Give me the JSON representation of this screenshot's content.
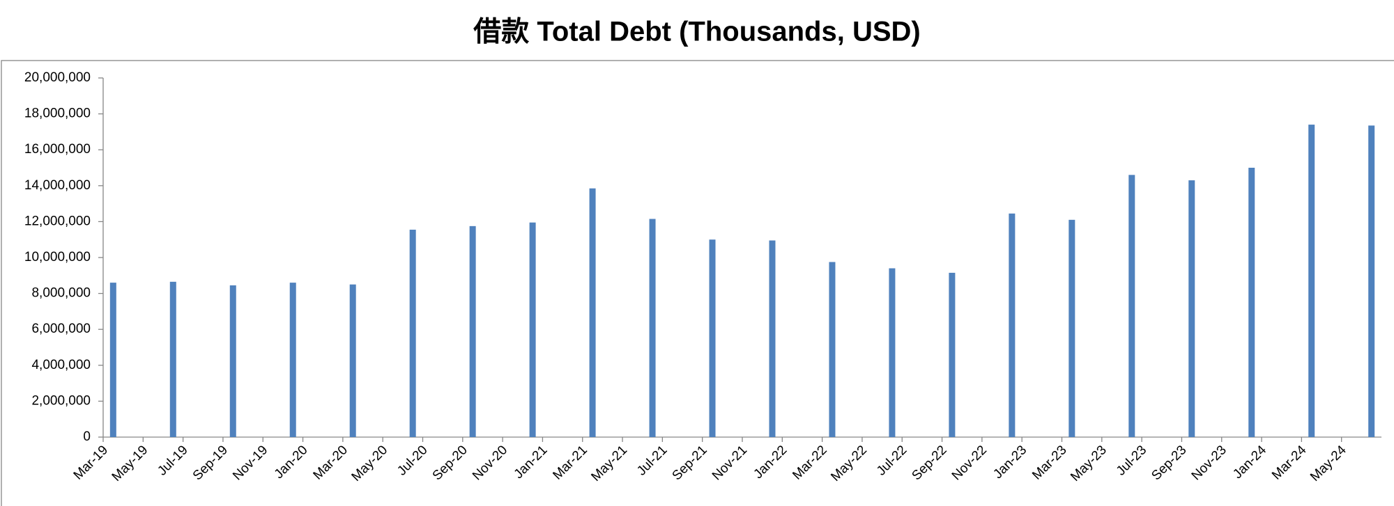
{
  "chart_data": {
    "type": "bar",
    "title": "借款 Total Debt (Thousands, USD)",
    "categories": [
      "Mar-19",
      null,
      "May-19",
      null,
      "Jul-19",
      null,
      "Sep-19",
      null,
      "Nov-19",
      null,
      "Jan-20",
      null,
      "Mar-20",
      null,
      "May-20",
      null,
      "Jul-20",
      null,
      "Sep-20",
      null,
      "Nov-20",
      null,
      "Jan-21",
      null,
      "Mar-21",
      null,
      "May-21",
      null,
      "Jul-21",
      null,
      "Sep-21",
      null,
      "Nov-21",
      null,
      "Jan-22",
      null,
      "Mar-22",
      null,
      "May-22",
      null,
      "Jul-22",
      null,
      "Sep-22",
      null,
      "Nov-22",
      null,
      "Jan-23",
      null,
      "Mar-23",
      null,
      "May-23",
      null,
      "Jul-23",
      null,
      "Sep-23",
      null,
      "Nov-23",
      null,
      "Jan-24",
      null,
      "Mar-24",
      null,
      "May-24",
      null
    ],
    "values": [
      8600000,
      null,
      null,
      8650000,
      null,
      null,
      8450000,
      null,
      null,
      8600000,
      null,
      null,
      8500000,
      null,
      null,
      11550000,
      null,
      null,
      11750000,
      null,
      null,
      11950000,
      null,
      null,
      13850000,
      null,
      null,
      12150000,
      null,
      null,
      11000000,
      null,
      null,
      10950000,
      null,
      null,
      9750000,
      null,
      null,
      9400000,
      null,
      null,
      9150000,
      null,
      null,
      12450000,
      null,
      null,
      12100000,
      null,
      null,
      14600000,
      null,
      null,
      14300000,
      null,
      null,
      15000000,
      null,
      null,
      17400000,
      null,
      null,
      17350000
    ],
    "color": "#4f81bd",
    "ylim": [
      0,
      20000000
    ],
    "yticks": [
      0,
      {
        "value": 2000000,
        "label": "2,000,000"
      },
      {
        "value": 4000000,
        "label": "4,000,000"
      },
      {
        "value": 6000000,
        "label": "6,000,000"
      },
      {
        "value": 8000000,
        "label": "8,000,000"
      },
      {
        "value": 10000000,
        "label": "10,000,000"
      },
      {
        "value": 12000000,
        "label": "12,000,000"
      },
      {
        "value": 14000000,
        "label": "14,000,000"
      },
      {
        "value": 16000000,
        "label": "16,000,000"
      },
      {
        "value": 18000000,
        "label": "18,000,000"
      },
      {
        "value": 20000000,
        "label": "20,000,000"
      }
    ],
    "grid": false
  }
}
